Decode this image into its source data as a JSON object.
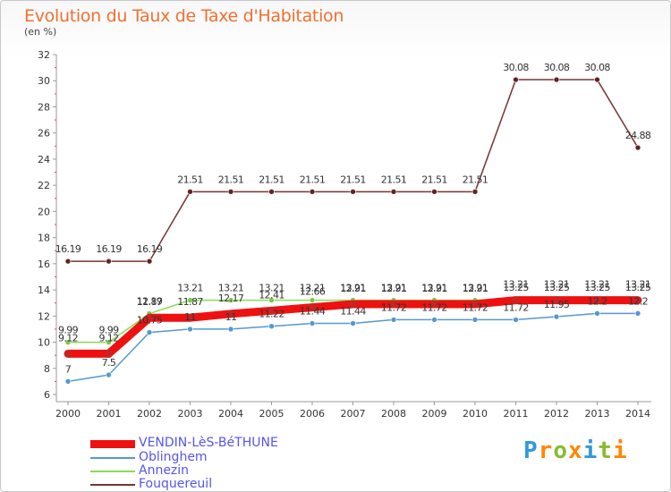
{
  "page": {
    "title": "Evolution du Taux de Taxe d'Habitation",
    "subtitle": "(en %)"
  },
  "chart_data": {
    "type": "line",
    "title": "Evolution du Taux de Taxe d'Habitation",
    "subtitle": "(en %)",
    "xlabel": "",
    "ylabel": "",
    "categories": [
      "2000",
      "2001",
      "2002",
      "2003",
      "2004",
      "2005",
      "2006",
      "2007",
      "2008",
      "2009",
      "2010",
      "2011",
      "2012",
      "2013",
      "2014"
    ],
    "ylim": [
      6,
      32
    ],
    "yticks": [
      6,
      8,
      10,
      12,
      14,
      16,
      18,
      20,
      22,
      24,
      26,
      28,
      30,
      32
    ],
    "grid": false,
    "legend_position": "bottom-left",
    "series": [
      {
        "name": "VENDIN-LèS-BéTHUNE",
        "color": "#ee1111",
        "marker_color": "#cc2222",
        "values": [
          9.12,
          9.12,
          11.87,
          11.87,
          12.17,
          12.41,
          12.66,
          12.91,
          12.91,
          12.91,
          12.91,
          13.21,
          13.21,
          13.21,
          13.21
        ],
        "labels": [
          "9.12",
          "9.12",
          "11.87",
          "11.87",
          "12.17",
          "12.41",
          "12.66",
          "12.91",
          "12.91",
          "12.91",
          "12.91",
          "13.21",
          "13.21",
          "13.21",
          "13.21"
        ]
      },
      {
        "name": "Oblinghem",
        "color": "#5599cc",
        "marker_color": "#5599cc",
        "values": [
          7,
          7.5,
          10.75,
          11,
          11,
          11.22,
          11.44,
          11.44,
          11.72,
          11.72,
          11.72,
          11.72,
          11.95,
          12.2,
          12.2
        ],
        "labels": [
          "7",
          "7.5",
          "10.75",
          "11",
          "11",
          "11.22",
          "11.44",
          "11.44",
          "11.72",
          "11.72",
          "11.72",
          "11.72",
          "11.95",
          "12.2",
          "12.2"
        ]
      },
      {
        "name": "Annezin",
        "color": "#88dd55",
        "marker_color": "#77cc44",
        "values": [
          9.99,
          9.99,
          12.19,
          13.21,
          13.21,
          13.21,
          13.21,
          13.21,
          13.21,
          13.21,
          13.21,
          13.25,
          13.25,
          13.25,
          13.25
        ],
        "labels": [
          "9.99",
          "9.99",
          "12.19",
          "13.21",
          "13.21",
          "13.21",
          "13.21",
          "13.21",
          "13.21",
          "13.21",
          "13.21",
          "13.25",
          "13.25",
          "13.25",
          "13.25"
        ]
      },
      {
        "name": "Fouquereuil",
        "color": "#773333",
        "marker_color": "#662222",
        "values": [
          16.19,
          16.19,
          16.19,
          21.51,
          21.51,
          21.51,
          21.51,
          21.51,
          21.51,
          21.51,
          21.51,
          30.08,
          30.08,
          30.08,
          24.88
        ],
        "labels": [
          "16.19",
          "16.19",
          "16.19",
          "21.51",
          "21.51",
          "21.51",
          "21.51",
          "21.51",
          "21.51",
          "21.51",
          "21.51",
          "30.08",
          "30.08",
          "30.08",
          "24.88"
        ]
      }
    ]
  },
  "legend": {
    "items": [
      {
        "label": "VENDIN-LèS-BéTHUNE",
        "color": "#ee1111",
        "text_color": "#5555ee"
      },
      {
        "label": "Oblinghem",
        "color": "#5599cc",
        "text_color": "#5555ee"
      },
      {
        "label": "Annezin",
        "color": "#88dd55",
        "text_color": "#5555ee"
      },
      {
        "label": "Fouquereuil",
        "color": "#773333",
        "text_color": "#5555ee"
      }
    ]
  },
  "logo": {
    "letters": [
      "P",
      "r",
      "o",
      "x",
      "i",
      "t",
      "i"
    ],
    "colors": [
      "#3399dd",
      "#ff8800",
      "#88bb33",
      "#ff8800",
      "#3399dd",
      "#88bb33",
      "#ff8800"
    ]
  }
}
